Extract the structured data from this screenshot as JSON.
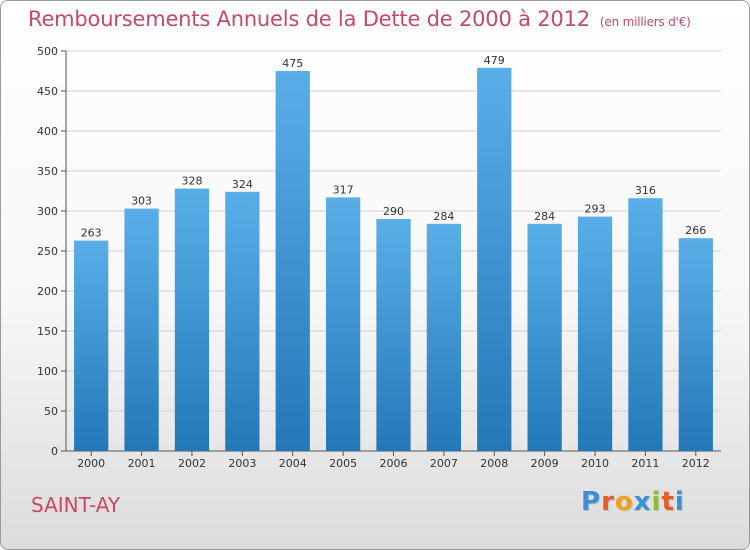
{
  "chart_data": {
    "type": "bar",
    "title": "Remboursements Annuels de la Dette de 2000 à 2012",
    "subtitle": "(en milliers d'€)",
    "categories": [
      "2000",
      "2001",
      "2002",
      "2003",
      "2004",
      "2005",
      "2006",
      "2007",
      "2008",
      "2009",
      "2010",
      "2011",
      "2012"
    ],
    "values": [
      263,
      303,
      328,
      324,
      475,
      317,
      290,
      284,
      479,
      284,
      293,
      316,
      266
    ],
    "ylim": [
      0,
      500
    ],
    "yticks": [
      0,
      50,
      100,
      150,
      200,
      250,
      300,
      350,
      400,
      450,
      500
    ],
    "grid": true,
    "bar_color_top": "#5aaee8",
    "bar_color_bottom": "#2478b8"
  },
  "footer": {
    "city": "SAINT-AY",
    "logo_letters": [
      "P",
      "r",
      "o",
      "x",
      "i",
      "t",
      "i"
    ],
    "logo_colors": [
      "#3a8fd6",
      "#e85a2a",
      "#f0a020",
      "#3a8fd6",
      "#8cbf2a",
      "#e85a2a",
      "#3a8fd6"
    ]
  }
}
